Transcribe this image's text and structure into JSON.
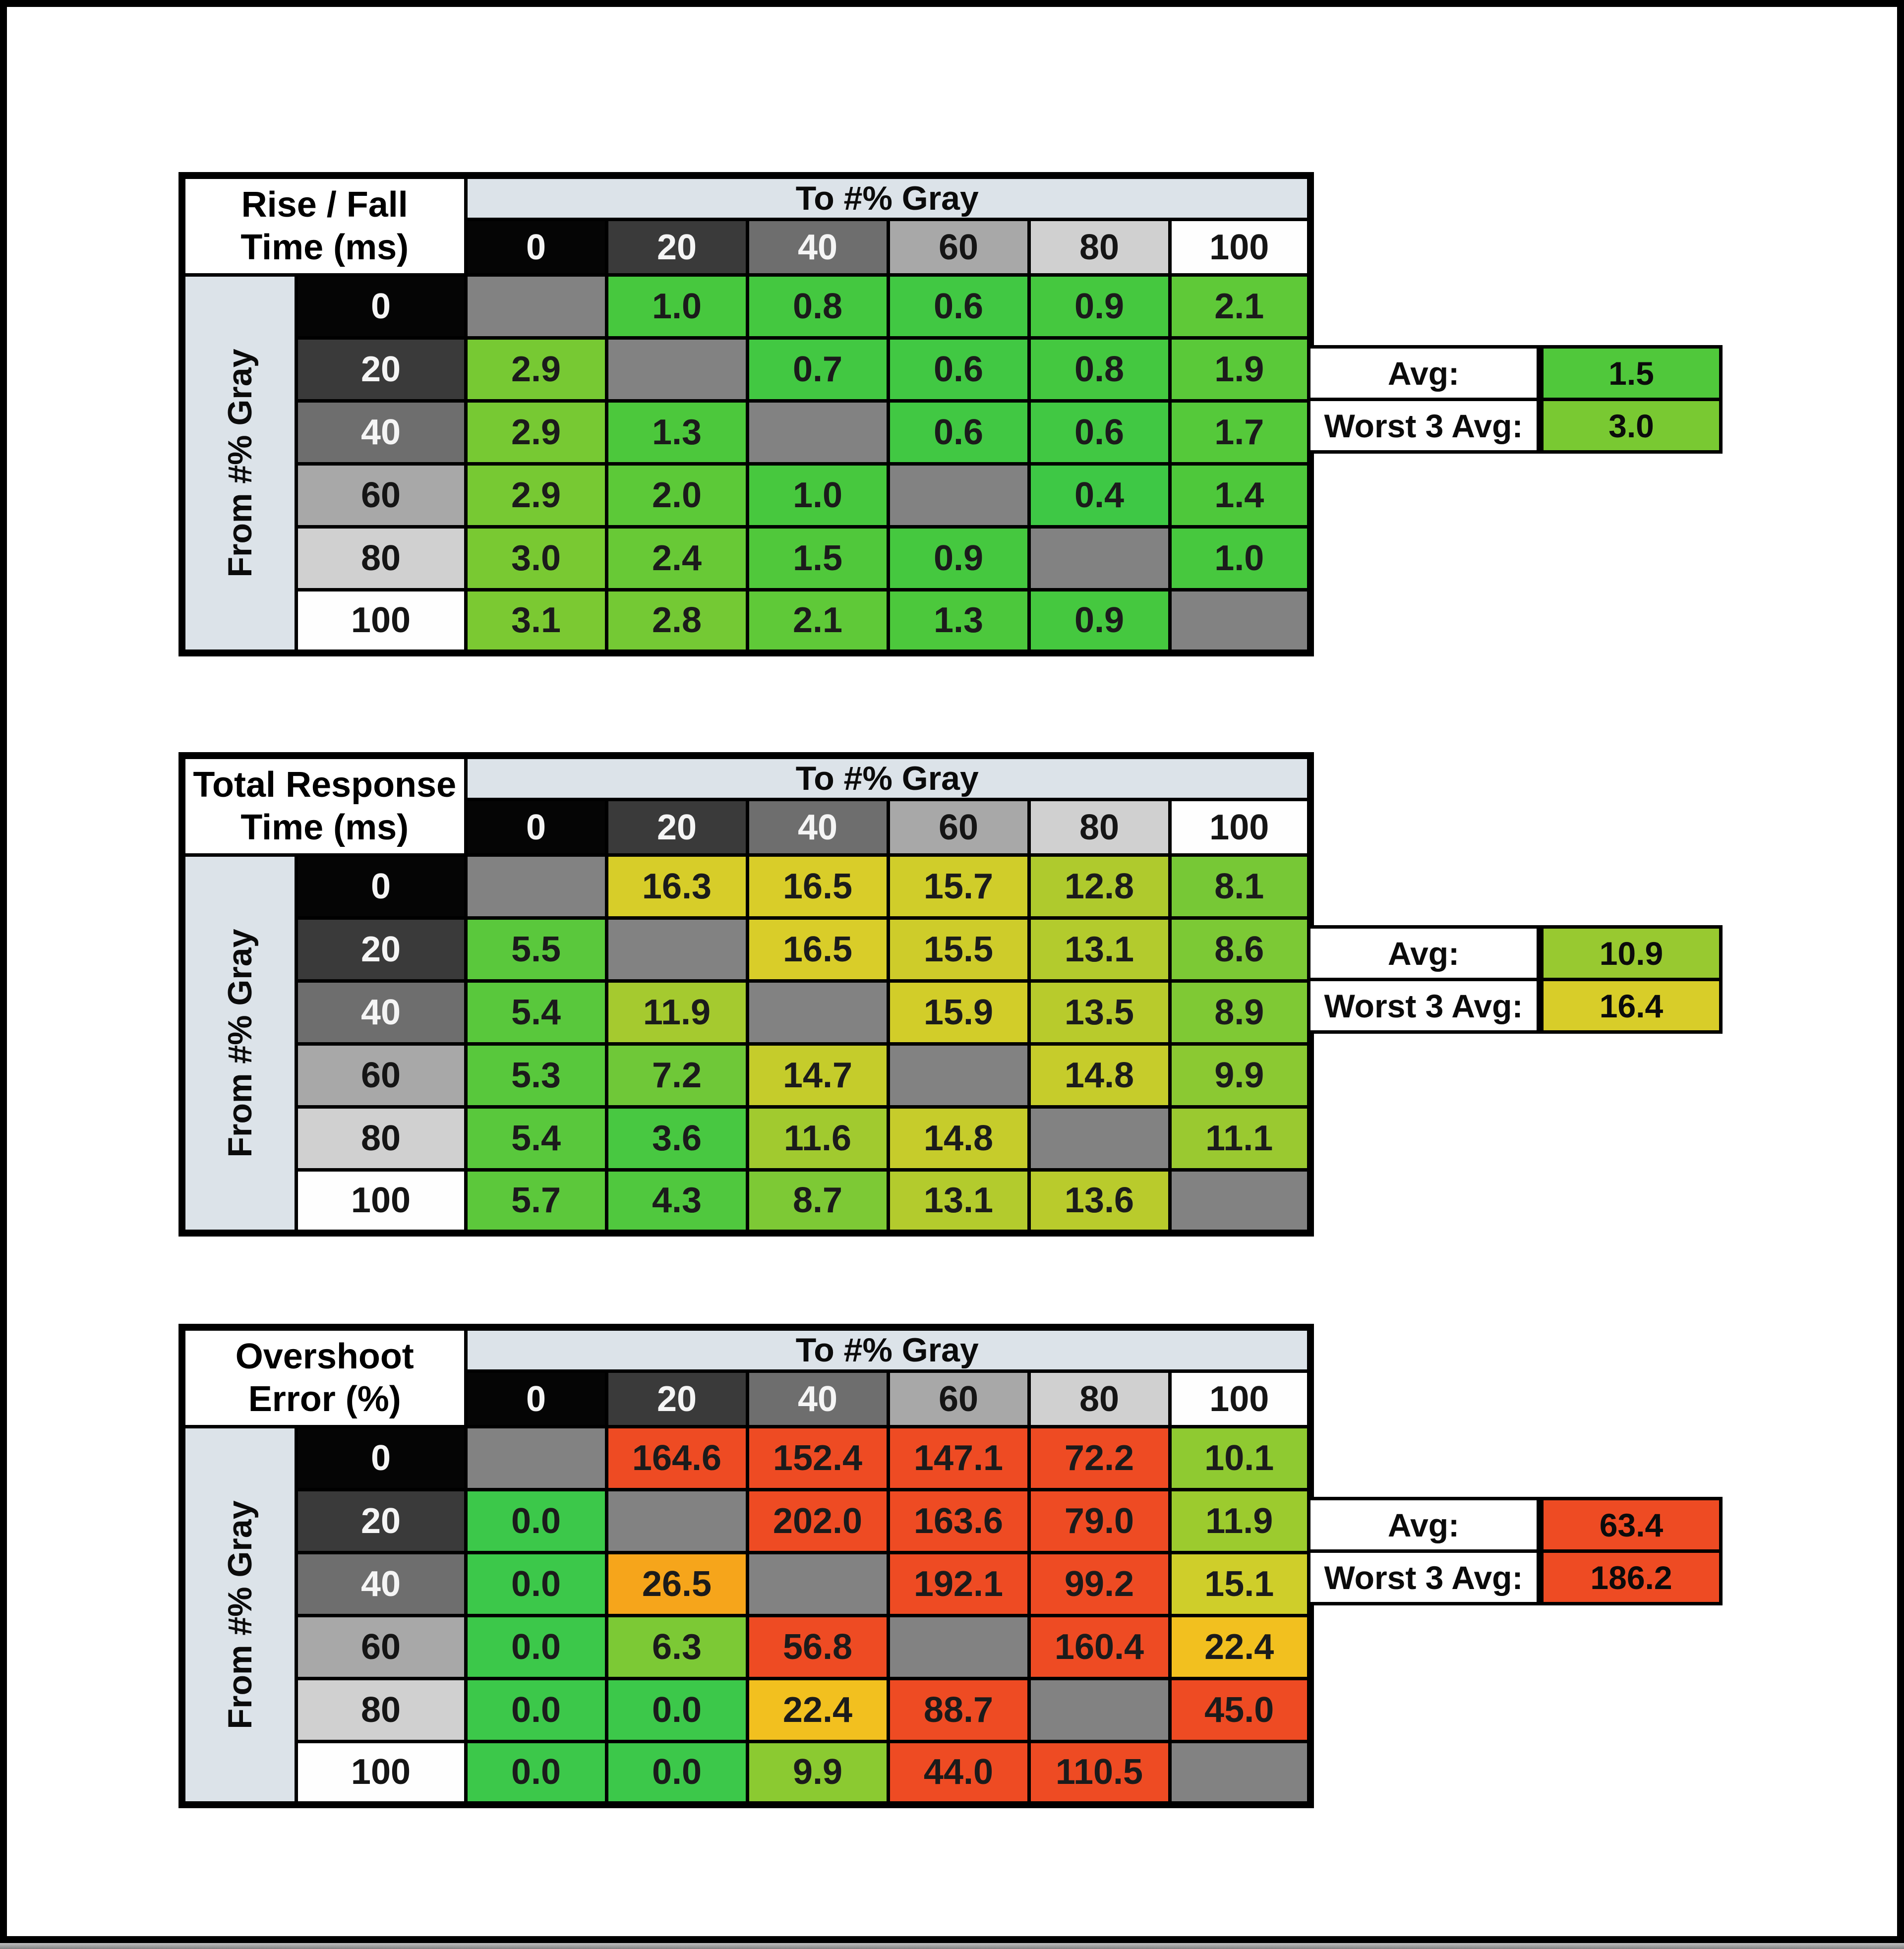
{
  "page": {
    "frame_color": "#000000",
    "background": "#ffffff"
  },
  "shared": {
    "to_label": "To #% Gray",
    "from_label": "From #% Gray",
    "avg_label": "Avg:",
    "worst_label": "Worst 3 Avg:",
    "gray_levels": [
      "0",
      "20",
      "40",
      "60",
      "80",
      "100"
    ],
    "header_bg": [
      "#050505",
      "#3A3A3A",
      "#6E6E6E",
      "#A8A8A8",
      "#D0D0D0",
      "#FEFEFE"
    ],
    "header_fg": [
      "#F5F5F5",
      "#F5F5F5",
      "#F5F5F5",
      "#151515",
      "#151515",
      "#151515"
    ],
    "band_color": "#DCE3E9",
    "diagonal_color": "#828282"
  },
  "tables": [
    {
      "title_line1": "Rise / Fall",
      "title_line2": "Time (ms)",
      "avg_value": "1.5",
      "avg_color": "#50C83B",
      "worst_value": "3.0",
      "worst_color": "#79C932",
      "rows": [
        {
          "cells": [
            null,
            {
              "v": "1.0",
              "c": "#47C83E"
            },
            {
              "v": "0.8",
              "c": "#44C840"
            },
            {
              "v": "0.6",
              "c": "#41C843"
            },
            {
              "v": "0.9",
              "c": "#45C83F"
            },
            {
              "v": "2.1",
              "c": "#5FC938"
            }
          ]
        },
        {
          "cells": [
            {
              "v": "2.9",
              "c": "#77C933"
            },
            null,
            {
              "v": "0.7",
              "c": "#42C842"
            },
            {
              "v": "0.6",
              "c": "#41C843"
            },
            {
              "v": "0.8",
              "c": "#44C840"
            },
            {
              "v": "1.9",
              "c": "#5AC939"
            }
          ]
        },
        {
          "cells": [
            {
              "v": "2.9",
              "c": "#77C933"
            },
            {
              "v": "1.3",
              "c": "#4CC83C"
            },
            null,
            {
              "v": "0.6",
              "c": "#41C843"
            },
            {
              "v": "0.6",
              "c": "#41C843"
            },
            {
              "v": "1.7",
              "c": "#55C93A"
            }
          ]
        },
        {
          "cells": [
            {
              "v": "2.9",
              "c": "#77C933"
            },
            {
              "v": "2.0",
              "c": "#5CC938"
            },
            {
              "v": "1.0",
              "c": "#47C83E"
            },
            null,
            {
              "v": "0.4",
              "c": "#3EC845"
            },
            {
              "v": "1.4",
              "c": "#4EC83B"
            }
          ]
        },
        {
          "cells": [
            {
              "v": "3.0",
              "c": "#79C932"
            },
            {
              "v": "2.4",
              "c": "#68C936"
            },
            {
              "v": "1.5",
              "c": "#50C83B"
            },
            {
              "v": "0.9",
              "c": "#45C83F"
            },
            null,
            {
              "v": "1.0",
              "c": "#47C83E"
            }
          ]
        },
        {
          "cells": [
            {
              "v": "3.1",
              "c": "#7BC932"
            },
            {
              "v": "2.8",
              "c": "#74C934"
            },
            {
              "v": "2.1",
              "c": "#5FC938"
            },
            {
              "v": "1.3",
              "c": "#4CC83C"
            },
            {
              "v": "0.9",
              "c": "#45C83F"
            },
            null
          ]
        }
      ]
    },
    {
      "title_line1": "Total Response",
      "title_line2": "Time (ms)",
      "avg_value": "10.9",
      "avg_color": "#98C930",
      "worst_value": "16.4",
      "worst_color": "#D8CD29",
      "rows": [
        {
          "cells": [
            null,
            {
              "v": "16.3",
              "c": "#D7CD29"
            },
            {
              "v": "16.5",
              "c": "#D9CD29"
            },
            {
              "v": "15.7",
              "c": "#D0CD2A"
            },
            {
              "v": "12.8",
              "c": "#AFCA2D"
            },
            {
              "v": "8.1",
              "c": "#77C836"
            }
          ]
        },
        {
          "cells": [
            {
              "v": "5.5",
              "c": "#5AC83C"
            },
            null,
            {
              "v": "16.5",
              "c": "#D9CD29"
            },
            {
              "v": "15.5",
              "c": "#CECC2A"
            },
            {
              "v": "13.1",
              "c": "#B3CB2D"
            },
            {
              "v": "8.6",
              "c": "#7CC935"
            }
          ]
        },
        {
          "cells": [
            {
              "v": "5.4",
              "c": "#59C83C"
            },
            {
              "v": "11.9",
              "c": "#A5CA2F"
            },
            null,
            {
              "v": "15.9",
              "c": "#D2CD29"
            },
            {
              "v": "13.5",
              "c": "#B8CB2C"
            },
            {
              "v": "8.9",
              "c": "#7FC934"
            }
          ]
        },
        {
          "cells": [
            {
              "v": "5.3",
              "c": "#58C83C"
            },
            {
              "v": "7.2",
              "c": "#6FC838"
            },
            {
              "v": "14.7",
              "c": "#C5CC2B"
            },
            null,
            {
              "v": "14.8",
              "c": "#C6CC2B"
            },
            {
              "v": "9.9",
              "c": "#8BC932"
            }
          ]
        },
        {
          "cells": [
            {
              "v": "5.4",
              "c": "#59C83C"
            },
            {
              "v": "3.6",
              "c": "#48C841"
            },
            {
              "v": "11.6",
              "c": "#A1CA2F"
            },
            {
              "v": "14.8",
              "c": "#C6CC2B"
            },
            null,
            {
              "v": "11.1",
              "c": "#9AC930"
            }
          ]
        },
        {
          "cells": [
            {
              "v": "5.7",
              "c": "#5CC83B"
            },
            {
              "v": "4.3",
              "c": "#50C83E"
            },
            {
              "v": "8.7",
              "c": "#7DC935"
            },
            {
              "v": "13.1",
              "c": "#B3CB2D"
            },
            {
              "v": "13.6",
              "c": "#B9CB2C"
            },
            null
          ]
        }
      ]
    },
    {
      "title_line1": "Overshoot",
      "title_line2": "Error (%)",
      "avg_value": "63.4",
      "avg_color": "#EE4B23",
      "worst_value": "186.2",
      "worst_color": "#EE4B23",
      "rows": [
        {
          "cells": [
            null,
            {
              "v": "164.6",
              "c": "#EE4B23"
            },
            {
              "v": "152.4",
              "c": "#EE4B23"
            },
            {
              "v": "147.1",
              "c": "#EE4B23"
            },
            {
              "v": "72.2",
              "c": "#EE4B23"
            },
            {
              "v": "10.1",
              "c": "#8FCA31"
            }
          ]
        },
        {
          "cells": [
            {
              "v": "0.0",
              "c": "#3CC84A"
            },
            null,
            {
              "v": "202.0",
              "c": "#EE4B23"
            },
            {
              "v": "163.6",
              "c": "#EE4B23"
            },
            {
              "v": "79.0",
              "c": "#EE4B23"
            },
            {
              "v": "11.9",
              "c": "#9CCB2E"
            }
          ]
        },
        {
          "cells": [
            {
              "v": "0.0",
              "c": "#3CC84A"
            },
            {
              "v": "26.5",
              "c": "#F6A51B"
            },
            null,
            {
              "v": "192.1",
              "c": "#EE4B23"
            },
            {
              "v": "99.2",
              "c": "#EE4B23"
            },
            {
              "v": "15.1",
              "c": "#CFCE2A"
            }
          ]
        },
        {
          "cells": [
            {
              "v": "0.0",
              "c": "#3CC84A"
            },
            {
              "v": "6.3",
              "c": "#7CC935"
            },
            {
              "v": "56.8",
              "c": "#EE4B23"
            },
            null,
            {
              "v": "160.4",
              "c": "#EE4B23"
            },
            {
              "v": "22.4",
              "c": "#F2C01F"
            }
          ]
        },
        {
          "cells": [
            {
              "v": "0.0",
              "c": "#3CC84A"
            },
            {
              "v": "0.0",
              "c": "#3CC84A"
            },
            {
              "v": "22.4",
              "c": "#F2C01F"
            },
            {
              "v": "88.7",
              "c": "#EE4B23"
            },
            null,
            {
              "v": "45.0",
              "c": "#EE4B23"
            }
          ]
        },
        {
          "cells": [
            {
              "v": "0.0",
              "c": "#3CC84A"
            },
            {
              "v": "0.0",
              "c": "#3CC84A"
            },
            {
              "v": "9.9",
              "c": "#8BCA31"
            },
            {
              "v": "44.0",
              "c": "#EE4B23"
            },
            {
              "v": "110.5",
              "c": "#EE4B23"
            },
            null
          ]
        }
      ]
    }
  ],
  "chart_data": [
    {
      "type": "heatmap",
      "title": "Rise / Fall Time (ms)",
      "x_axis_label": "To #% Gray",
      "y_axis_label": "From #% Gray",
      "x_categories": [
        0,
        20,
        40,
        60,
        80,
        100
      ],
      "y_categories": [
        0,
        20,
        40,
        60,
        80,
        100
      ],
      "values": [
        [
          null,
          1.0,
          0.8,
          0.6,
          0.9,
          2.1
        ],
        [
          2.9,
          null,
          0.7,
          0.6,
          0.8,
          1.9
        ],
        [
          2.9,
          1.3,
          null,
          0.6,
          0.6,
          1.7
        ],
        [
          2.9,
          2.0,
          1.0,
          null,
          0.4,
          1.4
        ],
        [
          3.0,
          2.4,
          1.5,
          0.9,
          null,
          1.0
        ],
        [
          3.1,
          2.8,
          2.1,
          1.3,
          0.9,
          null
        ]
      ],
      "avg": 1.5,
      "worst_3_avg": 3.0
    },
    {
      "type": "heatmap",
      "title": "Total Response Time (ms)",
      "x_axis_label": "To #% Gray",
      "y_axis_label": "From #% Gray",
      "x_categories": [
        0,
        20,
        40,
        60,
        80,
        100
      ],
      "y_categories": [
        0,
        20,
        40,
        60,
        80,
        100
      ],
      "values": [
        [
          null,
          16.3,
          16.5,
          15.7,
          12.8,
          8.1
        ],
        [
          5.5,
          null,
          16.5,
          15.5,
          13.1,
          8.6
        ],
        [
          5.4,
          11.9,
          null,
          15.9,
          13.5,
          8.9
        ],
        [
          5.3,
          7.2,
          14.7,
          null,
          14.8,
          9.9
        ],
        [
          5.4,
          3.6,
          11.6,
          14.8,
          null,
          11.1
        ],
        [
          5.7,
          4.3,
          8.7,
          13.1,
          13.6,
          null
        ]
      ],
      "avg": 10.9,
      "worst_3_avg": 16.4
    },
    {
      "type": "heatmap",
      "title": "Overshoot Error (%)",
      "x_axis_label": "To #% Gray",
      "y_axis_label": "From #% Gray",
      "x_categories": [
        0,
        20,
        40,
        60,
        80,
        100
      ],
      "y_categories": [
        0,
        20,
        40,
        60,
        80,
        100
      ],
      "values": [
        [
          null,
          164.6,
          152.4,
          147.1,
          72.2,
          10.1
        ],
        [
          0.0,
          null,
          202.0,
          163.6,
          79.0,
          11.9
        ],
        [
          0.0,
          26.5,
          null,
          192.1,
          99.2,
          15.1
        ],
        [
          0.0,
          6.3,
          56.8,
          null,
          160.4,
          22.4
        ],
        [
          0.0,
          0.0,
          22.4,
          88.7,
          null,
          45.0
        ],
        [
          0.0,
          0.0,
          9.9,
          44.0,
          110.5,
          null
        ]
      ],
      "avg": 63.4,
      "worst_3_avg": 186.2
    }
  ]
}
